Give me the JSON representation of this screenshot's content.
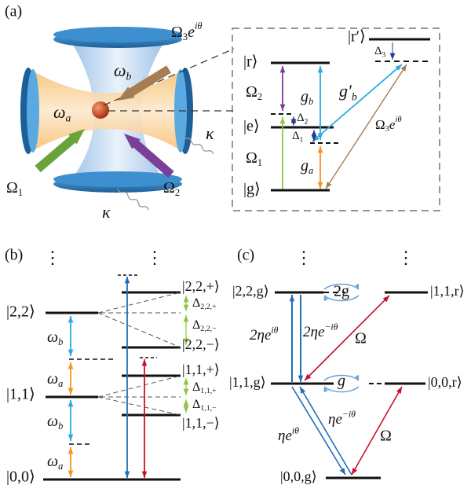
{
  "panel_a": {
    "label": "(a)",
    "pump_omega3": {
      "text": "Ω",
      "sub": "3",
      "tail": "e",
      "sup": "iθ"
    },
    "omega_b": {
      "text": "ω",
      "sub": "b"
    },
    "omega_a": {
      "text": "ω",
      "sub": "a"
    },
    "kappa_right": "κ",
    "kappa_bottom": "κ",
    "pump_omega1": {
      "text": "Ω",
      "sub": "1"
    },
    "pump_omega2": {
      "text": "Ω",
      "sub": "2"
    },
    "inset": {
      "ket_r": "|r⟩",
      "ket_r_prime": "|r′⟩",
      "delta3": {
        "text": "Δ",
        "sub": "3"
      },
      "omega2": {
        "text": "Ω",
        "sub": "2"
      },
      "g_b": {
        "text": "g",
        "sub": "b"
      },
      "g_b_prime": {
        "text": "g′",
        "sub": "b"
      },
      "ket_e": "|e⟩",
      "delta2": {
        "text": "Δ",
        "sub": "2"
      },
      "delta1": {
        "text": "Δ",
        "sub": "1"
      },
      "omega1": {
        "text": "Ω",
        "sub": "1"
      },
      "g_a": {
        "text": "g",
        "sub": "a"
      },
      "omega3": {
        "text": "Ω",
        "sub": "3",
        "tail": "e",
        "sup": "iθ"
      },
      "ket_g": "|g⟩"
    }
  },
  "panel_b": {
    "label": "(b)",
    "dots_left": "⋮",
    "dots_right": "⋮",
    "ket_22": "|2,2⟩",
    "omega_b_upper": {
      "text": "ω",
      "sub": "b"
    },
    "omega_a_upper": {
      "text": "ω",
      "sub": "a"
    },
    "ket_11": "|1,1⟩",
    "omega_b_lower": {
      "text": "ω",
      "sub": "b"
    },
    "omega_a_lower": {
      "text": "ω",
      "sub": "a"
    },
    "ket_00": "|0,0⟩",
    "ket_22_plus": "|2,2,+⟩",
    "delta_22_plus": {
      "text": "Δ",
      "sub": "2,2,+"
    },
    "delta_22_minus": {
      "text": "Δ",
      "sub": "2,2,−"
    },
    "ket_22_minus": "|2,2,−⟩",
    "ket_11_plus": "|1,1,+⟩",
    "delta_11_plus": {
      "text": "Δ",
      "sub": "1,1,+"
    },
    "delta_11_minus": {
      "text": "Δ",
      "sub": "1,1,−"
    },
    "ket_11_minus": "|1,1,−⟩"
  },
  "panel_c": {
    "label": "(c)",
    "dots_left": "⋮",
    "dots_right": "⋮",
    "ket_22g": "|2,2,g⟩",
    "coupling_2g": "2g",
    "ket_11r": "|1,1,r⟩",
    "drive_up_2": {
      "text": "2η",
      "tail": "e",
      "sup": "iθ"
    },
    "drive_down_2": {
      "text": "2η",
      "tail": "e",
      "sup": "−iθ"
    },
    "omega_upper": "Ω",
    "ket_11g": "|1,1,g⟩",
    "coupling_g": "g",
    "ket_00r": "|0,0,r⟩",
    "drive_up_1": {
      "text": "η",
      "tail": "e",
      "sup": "iθ"
    },
    "drive_down_1": {
      "text": "η",
      "tail": "e",
      "sup": "−iθ"
    },
    "omega_lower": "Ω",
    "ket_00g": "|0,0,g⟩"
  }
}
